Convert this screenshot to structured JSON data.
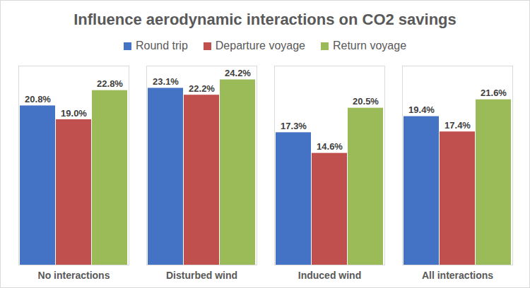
{
  "chart_data": {
    "type": "bar",
    "title": "Influence aerodynamic interactions on CO2 savings",
    "categories": [
      "No interactions",
      "Disturbed wind",
      "Induced wind",
      "All interactions"
    ],
    "series": [
      {
        "name": "Round trip",
        "color": "#4472c4",
        "values": [
          20.8,
          23.1,
          17.3,
          19.4
        ],
        "value_labels": [
          "20.8%",
          "23.1%",
          "17.3%",
          "19.4%"
        ]
      },
      {
        "name": "Departure voyage",
        "color": "#c0504d",
        "values": [
          19.0,
          22.2,
          14.6,
          17.4
        ],
        "value_labels": [
          "19.0%",
          "22.2%",
          "14.6%",
          "17.4%"
        ]
      },
      {
        "name": "Return voyage",
        "color": "#9bbb59",
        "values": [
          22.8,
          24.2,
          20.5,
          21.6
        ],
        "value_labels": [
          "22.8%",
          "24.2%",
          "20.5%",
          "21.6%"
        ]
      }
    ],
    "ylim": [
      0,
      26
    ],
    "grid": false,
    "legend": "top",
    "data_labels": true,
    "tick_labels": "x"
  }
}
